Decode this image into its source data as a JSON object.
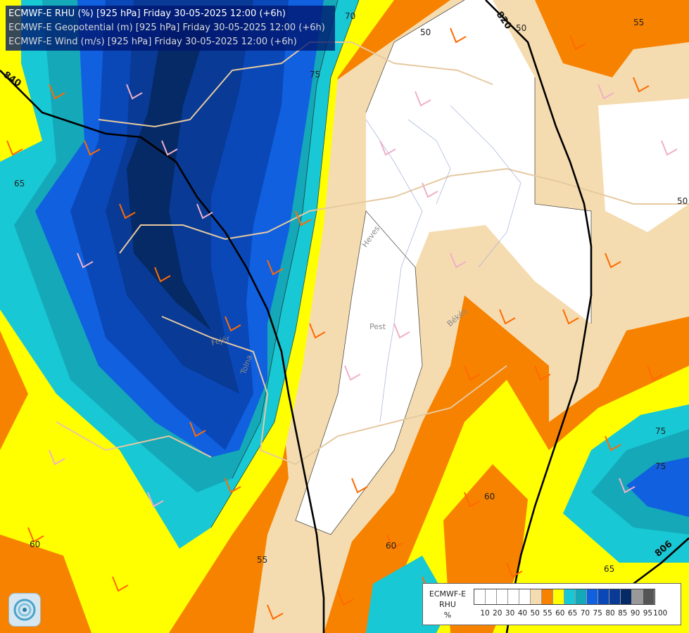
{
  "header": {
    "line1": "ECMWF-E RHU (%) [925 hPa] Friday 30-05-2025 12:00 (+6h)",
    "line2": "ECMWF-E Geopotential (m) [925 hPa] Friday 30-05-2025 12:00 (+6h)",
    "line3": "ECMWF-E Wind (m/s) [925 hPa] Friday 30-05-2025 12:00 (+6h)"
  },
  "places": {
    "heves": "Heves",
    "pest": "Pest",
    "bekes": "Békés",
    "fejer": "Fejér",
    "tolna": "Tolna"
  },
  "contour_labels": {
    "rhu": [
      "50",
      "50",
      "55",
      "65",
      "70",
      "75",
      "50",
      "55",
      "60",
      "60",
      "75",
      "75",
      "65",
      "60"
    ],
    "geopotential": [
      "840",
      "820",
      "806"
    ]
  },
  "legend": {
    "title": "ECMWF-E",
    "param": "RHU",
    "unit": "%",
    "colors": [
      "#ffffff",
      "#ffffff",
      "#ffffff",
      "#ffffff",
      "#ffffff",
      "#f5dcb0",
      "#f78200",
      "#ffff00",
      "#18c8d4",
      "#15a8b8",
      "#1060e0",
      "#0a48b8",
      "#083a96",
      "#062a66",
      "#999999",
      "#555555"
    ],
    "ticks": [
      "10",
      "20",
      "30",
      "40",
      "50",
      "55",
      "60",
      "65",
      "70",
      "75",
      "80",
      "85",
      "90",
      "95",
      "100"
    ]
  },
  "fill_colors": {
    "tan": "#f5dcb0",
    "orange": "#f78200",
    "yellow": "#ffff00",
    "cyan": "#18c8d4",
    "teal": "#15a8b8",
    "blue": "#1060e0",
    "mid_blue": "#0a48b8",
    "dark_blue": "#083a96",
    "navy": "#062a66"
  },
  "logo": {
    "icon": "ecmwf-logo-icon"
  }
}
